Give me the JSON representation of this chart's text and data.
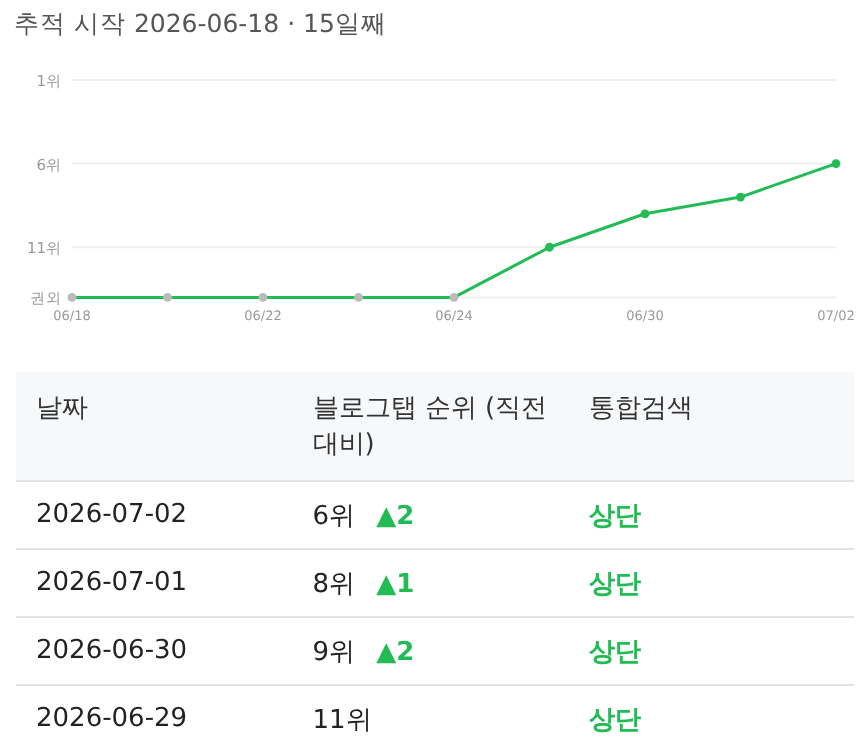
{
  "chart_data": {
    "type": "line",
    "title": "추적 시작 2026-06-18 · 15일째",
    "categories": [
      "06/18",
      null,
      "06/22",
      null,
      "06/24",
      null,
      "06/30",
      null,
      "07/02"
    ],
    "series": [
      {
        "color": "#22bb55",
        "values": [
          14,
          14,
          14,
          14,
          14,
          11,
          9,
          8,
          6
        ],
        "colors": [
          "#bbbbbb",
          "#bbbbbb",
          "#bbbbbb",
          "#bbbbbb",
          "#bbbbbb",
          "#22bb55",
          "#22bb55",
          "#22bb55",
          "#22bb55"
        ]
      }
    ],
    "ylim": [
      14,
      1
    ],
    "yticks": [
      {
        "value": 1,
        "label": "1위"
      },
      {
        "value": 6,
        "label": "6위"
      },
      {
        "value": 11,
        "label": "11위"
      },
      {
        "value": 14,
        "label": "권외"
      }
    ],
    "grid": "y",
    "marker": "circle",
    "annotations": [
      "날짜",
      "블로그탭 순위 (직전 대비)",
      "통합검색",
      "2026-07-02",
      "6위 ▲2",
      "상단",
      "2026-07-01",
      "8위 ▲1",
      "상단",
      "2026-06-30",
      "9위 ▲2",
      "상단",
      "2026-06-29",
      "11위",
      "상단"
    ]
  }
}
